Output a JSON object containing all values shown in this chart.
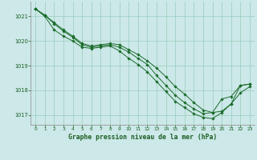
{
  "bg_color": "#cce8e8",
  "grid_color": "#99ccbb",
  "line_color": "#1a6b2a",
  "marker_color": "#1a6b2a",
  "title": "Graphe pression niveau de la mer (hPa)",
  "title_color": "#1a5c20",
  "ylim": [
    1016.6,
    1021.6
  ],
  "xlim": [
    -0.5,
    23.5
  ],
  "yticks": [
    1017,
    1018,
    1019,
    1020,
    1021
  ],
  "xticks": [
    0,
    1,
    2,
    3,
    4,
    5,
    6,
    7,
    8,
    9,
    10,
    11,
    12,
    13,
    14,
    15,
    16,
    17,
    18,
    19,
    20,
    21,
    22,
    23
  ],
  "series": [
    [
      1021.3,
      1021.05,
      1020.75,
      1020.45,
      1020.2,
      1019.9,
      1019.8,
      1019.85,
      1019.9,
      1019.85,
      1019.65,
      1019.45,
      1019.2,
      1018.9,
      1018.55,
      1018.15,
      1017.85,
      1017.5,
      1017.2,
      1017.1,
      1017.15,
      1017.45,
      1018.2,
      1018.25
    ],
    [
      1021.3,
      1021.05,
      1020.7,
      1020.4,
      1020.15,
      1019.85,
      1019.75,
      1019.8,
      1019.85,
      1019.75,
      1019.55,
      1019.3,
      1019.05,
      1018.6,
      1018.2,
      1017.8,
      1017.5,
      1017.25,
      1017.05,
      1017.1,
      1017.65,
      1017.75,
      1018.2,
      1018.25
    ],
    [
      1021.3,
      1021.0,
      1020.45,
      1020.2,
      1020.0,
      1019.75,
      1019.7,
      1019.75,
      1019.8,
      1019.6,
      1019.3,
      1019.05,
      1018.75,
      1018.35,
      1017.95,
      1017.55,
      1017.3,
      1017.05,
      1016.9,
      1016.85,
      1017.1,
      1017.45,
      1017.9,
      1018.15
    ]
  ]
}
